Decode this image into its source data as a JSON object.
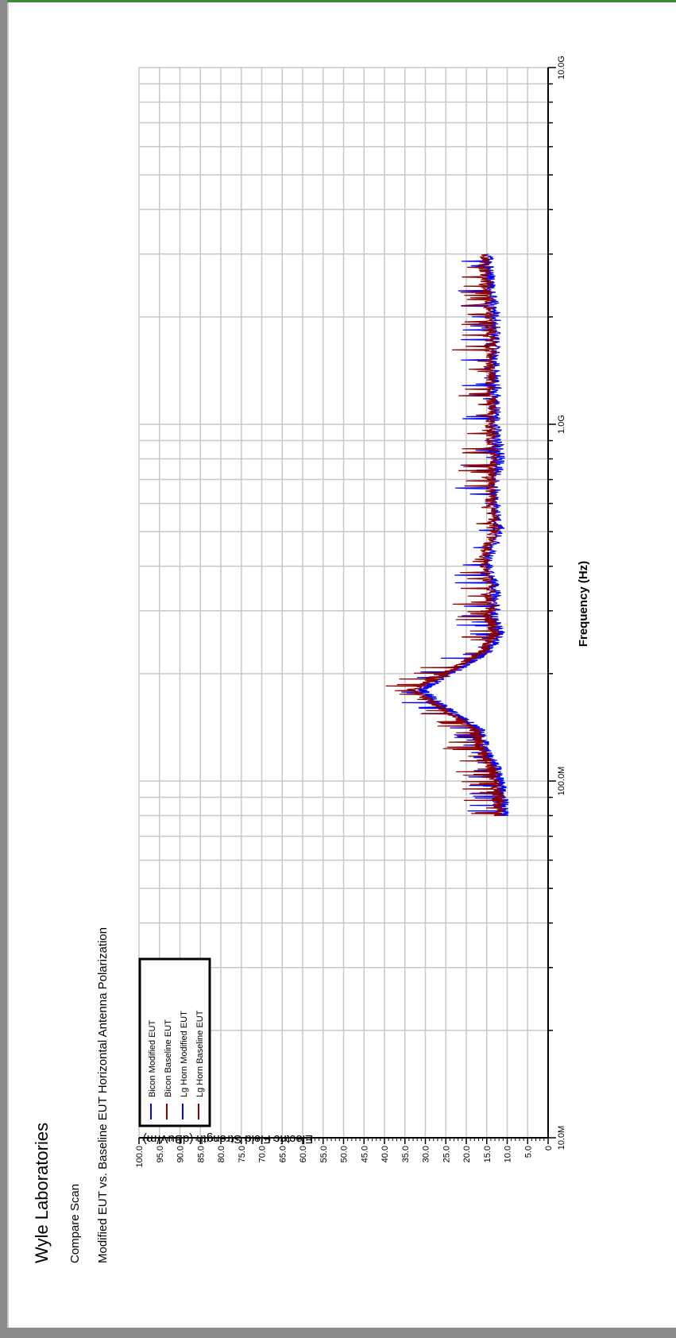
{
  "header": {
    "company": "Wyle Laboratories",
    "scan_type": "Compare Scan",
    "description": "Modified EUT vs. Baseline EUT Horizontal Antenna Polarization"
  },
  "chart_data": {
    "type": "line",
    "xlabel": "Frequency (Hz)",
    "ylabel": "Electric Field Strength (dBuV/m)",
    "x_scale": "log",
    "xlim": [
      10000000,
      10000000000
    ],
    "ylim": [
      0,
      100
    ],
    "x_tick_labels": [
      {
        "value": 10000000,
        "label": "10.0M"
      },
      {
        "value": 100000000,
        "label": "100.0M"
      },
      {
        "value": 1000000000,
        "label": "1.0G"
      },
      {
        "value": 10000000000,
        "label": "10.0G"
      }
    ],
    "y_ticks": [
      0,
      5,
      10,
      15,
      20,
      25,
      30,
      35,
      40,
      45,
      50,
      55,
      60,
      65,
      70,
      75,
      80,
      85,
      90,
      95,
      100
    ],
    "y_tick_labels": [
      "0",
      "5.0",
      "10.0",
      "15.0",
      "20.0",
      "25.0",
      "30.0",
      "35.0",
      "40.0",
      "45.0",
      "50.0",
      "55.0",
      "60.0",
      "65.0",
      "70.0",
      "75.0",
      "80.0",
      "85.0",
      "90.0",
      "95.0",
      "100.0"
    ],
    "grid": true,
    "legend_position": "top-left",
    "series": [
      {
        "name": "Bicon Modified EUT",
        "color": "#0000ff",
        "points": [
          [
            80000000,
            11
          ],
          [
            90000000,
            11
          ],
          [
            100000000,
            12
          ],
          [
            110000000,
            13
          ],
          [
            120000000,
            15
          ],
          [
            130000000,
            16
          ],
          [
            140000000,
            17
          ],
          [
            160000000,
            25
          ],
          [
            180000000,
            31
          ],
          [
            200000000,
            24
          ],
          [
            230000000,
            15
          ],
          [
            260000000,
            12
          ],
          [
            300000000,
            14
          ]
        ]
      },
      {
        "name": "Bicon Baseline EUT",
        "color": "#8b0000",
        "points": [
          [
            80000000,
            12
          ],
          [
            90000000,
            12
          ],
          [
            100000000,
            13
          ],
          [
            110000000,
            14
          ],
          [
            120000000,
            16
          ],
          [
            130000000,
            17
          ],
          [
            140000000,
            18
          ],
          [
            160000000,
            26
          ],
          [
            180000000,
            33
          ],
          [
            200000000,
            25
          ],
          [
            230000000,
            16
          ],
          [
            260000000,
            13
          ],
          [
            300000000,
            15
          ]
        ]
      },
      {
        "name": "Lg Horn Modified EUT",
        "color": "#0000ff",
        "points": [
          [
            300000000,
            13
          ],
          [
            350000000,
            13
          ],
          [
            400000000,
            15
          ],
          [
            450000000,
            14
          ],
          [
            500000000,
            12
          ],
          [
            600000000,
            13
          ],
          [
            700000000,
            13
          ],
          [
            800000000,
            12
          ],
          [
            1000000000,
            13
          ],
          [
            1500000000,
            13
          ],
          [
            2000000000,
            13
          ],
          [
            2500000000,
            14
          ],
          [
            3000000000,
            15
          ]
        ]
      },
      {
        "name": "Lg Horn Baseline EUT",
        "color": "#8b0000",
        "points": [
          [
            300000000,
            14
          ],
          [
            350000000,
            14
          ],
          [
            400000000,
            16
          ],
          [
            450000000,
            15
          ],
          [
            500000000,
            13
          ],
          [
            600000000,
            14
          ],
          [
            700000000,
            14
          ],
          [
            800000000,
            13
          ],
          [
            1000000000,
            14
          ],
          [
            1500000000,
            14
          ],
          [
            2000000000,
            14
          ],
          [
            2500000000,
            15
          ],
          [
            3000000000,
            16
          ]
        ]
      }
    ]
  }
}
